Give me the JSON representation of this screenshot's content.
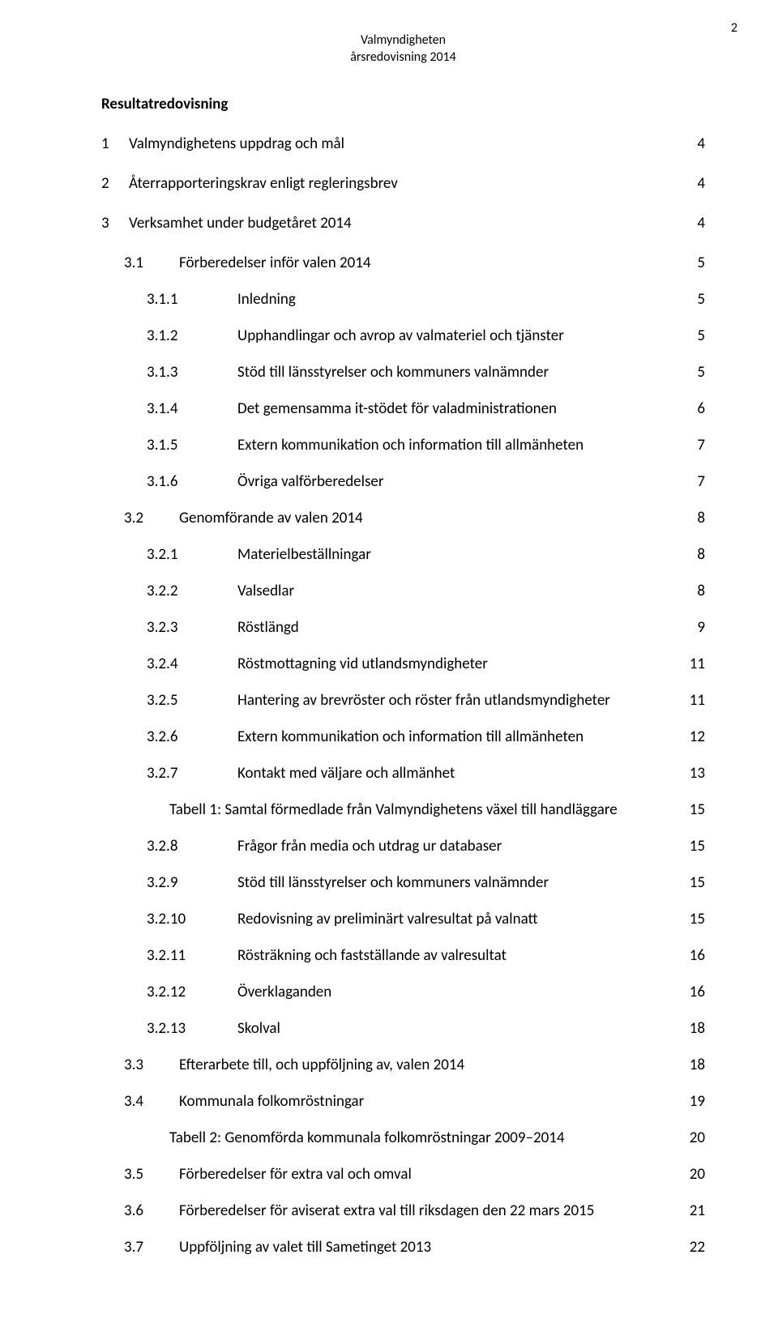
{
  "header": {
    "line1": "Valmyndigheten",
    "line2": "årsredovisning 2014",
    "page_number": "2"
  },
  "section_heading": "Resultatredovisning",
  "toc": [
    {
      "level": 1,
      "num": "1",
      "title": "Valmyndighetens uppdrag och mål",
      "page": "4"
    },
    {
      "level": 1,
      "num": "2",
      "title": "Återrapporteringskrav enligt regleringsbrev",
      "page": "4"
    },
    {
      "level": 1,
      "num": "3",
      "title": "Verksamhet under budgetåret 2014",
      "page": "4"
    },
    {
      "level": 2,
      "num": "3.1",
      "title": "Förberedelser inför valen 2014",
      "page": "5"
    },
    {
      "level": 3,
      "num": "3.1.1",
      "title": "Inledning",
      "page": "5"
    },
    {
      "level": 3,
      "num": "3.1.2",
      "title": "Upphandlingar och avrop av valmateriel och tjänster",
      "page": "5"
    },
    {
      "level": 3,
      "num": "3.1.3",
      "title": "Stöd till länsstyrelser och kommuners valnämnder",
      "page": "5"
    },
    {
      "level": 3,
      "num": "3.1.4",
      "title": "Det gemensamma it-stödet för valadministrationen",
      "page": "6"
    },
    {
      "level": 3,
      "num": "3.1.5",
      "title": "Extern kommunikation och information till allmänheten",
      "page": "7"
    },
    {
      "level": 3,
      "num": "3.1.6",
      "title": "Övriga valförberedelser",
      "page": "7"
    },
    {
      "level": 2,
      "num": "3.2",
      "title": "Genomförande av valen 2014",
      "page": "8"
    },
    {
      "level": 3,
      "num": "3.2.1",
      "title": "Materielbeställningar",
      "page": "8"
    },
    {
      "level": 3,
      "num": "3.2.2",
      "title": "Valsedlar",
      "page": "8"
    },
    {
      "level": 3,
      "num": "3.2.3",
      "title": "Röstlängd",
      "page": "9"
    },
    {
      "level": 3,
      "num": "3.2.4",
      "title": "Röstmottagning vid utlandsmyndigheter",
      "page": "11"
    },
    {
      "level": 3,
      "num": "3.2.5",
      "title": "Hantering av brevröster och röster från utlandsmyndigheter",
      "page": "11"
    },
    {
      "level": 3,
      "num": "3.2.6",
      "title": "Extern kommunikation och information till allmänheten",
      "page": "12"
    },
    {
      "level": 3,
      "num": "3.2.7",
      "title": "Kontakt med väljare och allmänhet",
      "page": "13"
    },
    {
      "level": "indent",
      "num": "",
      "title": "Tabell 1: Samtal förmedlade från Valmyndighetens växel till handläggare",
      "page": "15"
    },
    {
      "level": 3,
      "num": "3.2.8",
      "title": "Frågor från media och utdrag ur databaser",
      "page": "15"
    },
    {
      "level": 3,
      "num": "3.2.9",
      "title": "Stöd till länsstyrelser och kommuners valnämnder",
      "page": "15"
    },
    {
      "level": 3,
      "num": "3.2.10",
      "title": "Redovisning av preliminärt valresultat på valnatt",
      "page": "15"
    },
    {
      "level": 3,
      "num": "3.2.11",
      "title": "Rösträkning och fastställande av valresultat",
      "page": "16"
    },
    {
      "level": 3,
      "num": "3.2.12",
      "title": "Överklaganden",
      "page": "16"
    },
    {
      "level": 3,
      "num": "3.2.13",
      "title": "Skolval",
      "page": "18"
    },
    {
      "level": 2,
      "num": "3.3",
      "title": "Efterarbete till, och uppföljning av, valen 2014",
      "page": "18"
    },
    {
      "level": 2,
      "num": "3.4",
      "title": "Kommunala folkomröstningar",
      "page": "19"
    },
    {
      "level": "indent",
      "num": "",
      "title": "Tabell 2: Genomförda kommunala folkomröstningar 2009–2014",
      "page": "20"
    },
    {
      "level": 2,
      "num": "3.5",
      "title": "Förberedelser för extra val och omval",
      "page": "20"
    },
    {
      "level": 2,
      "num": "3.6",
      "title": "Förberedelser för aviserat extra val till riksdagen den 22 mars 2015",
      "page": "21"
    },
    {
      "level": 2,
      "num": "3.7",
      "title": "Uppföljning av valet till Sametinget 2013",
      "page": "22"
    }
  ]
}
